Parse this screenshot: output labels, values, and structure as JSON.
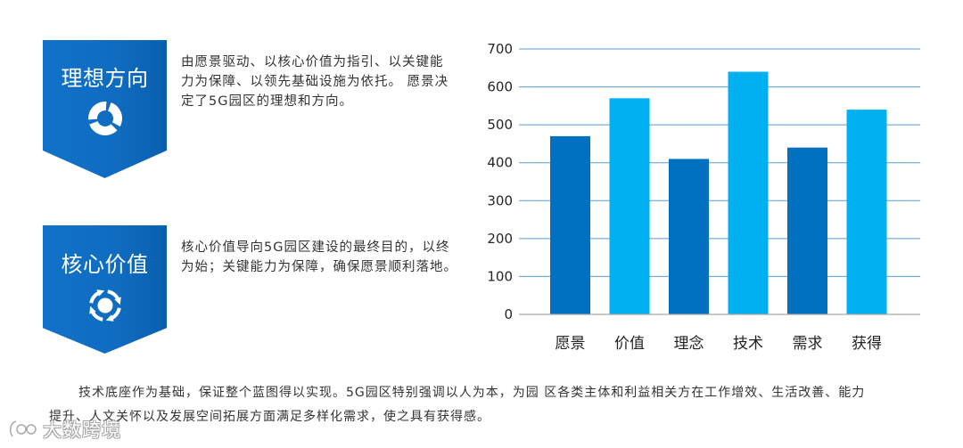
{
  "blocks": [
    {
      "title": "理想方向",
      "icon": "donut-ring-icon",
      "lines": [
        "由愿景驱动、以核心价值为指引、以关键能",
        "力为保障、以领先基础设施为依托。 愿景决",
        "定了5G园区的理想和方向。"
      ]
    },
    {
      "title": "核心价值",
      "icon": "cycle-arrows-icon",
      "lines": [
        "核心价值导向5G园区建设的最终目的，以终",
        "为始；关键能力为保障，确保愿景顺利落地。"
      ]
    }
  ],
  "footer": {
    "lines": [
      "技术底座作为基础，保证整个蓝图得以实现。5G园区特别强调以人为本，为园 区各类主体和利益相关方在工作增效、生活改善、能力",
      "提升、人文关怀以及发展空间拓展方面满足多样化需求，使之具有获得感。"
    ]
  },
  "watermark": "大数跨境",
  "colors": {
    "badge_blue": "#0F6CC0",
    "dark_blue": "#0070C0",
    "light_blue": "#00B0F0",
    "gridline": "#5B9BD5"
  },
  "chart_data": {
    "type": "bar",
    "categories": [
      "愿景",
      "价值",
      "理念",
      "技术",
      "需求",
      "获得"
    ],
    "values": [
      470,
      570,
      410,
      640,
      440,
      540
    ],
    "bar_colors": [
      "#0070C0",
      "#00B0F0",
      "#0070C0",
      "#00B0F0",
      "#0070C0",
      "#00B0F0"
    ],
    "title": "",
    "xlabel": "",
    "ylabel": "",
    "ylim": [
      0,
      700
    ],
    "yticks": [
      0,
      100,
      200,
      300,
      400,
      500,
      600,
      700
    ],
    "grid": true,
    "legend": "none"
  }
}
